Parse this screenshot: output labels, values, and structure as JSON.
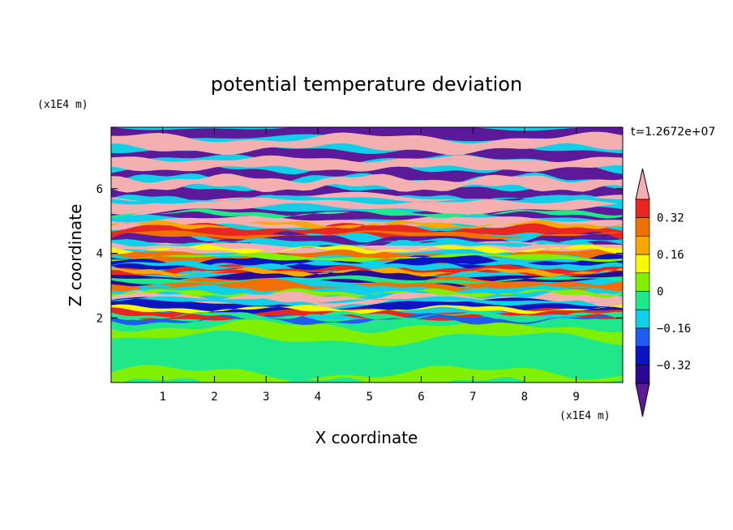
{
  "chart_data": {
    "type": "heatmap",
    "title": "potential temperature deviation",
    "xlabel": "X coordinate",
    "ylabel": "Z coordinate",
    "x_unit": "(x1E4 m)",
    "y_unit": "(x1E4 m)",
    "time_label": "t=1.2672e+07",
    "xlim": [
      0,
      9.9
    ],
    "ylim": [
      0,
      7.9
    ],
    "x_ticks": [
      1,
      2,
      3,
      4,
      5,
      6,
      7,
      8,
      9
    ],
    "y_ticks": [
      2,
      4,
      6
    ],
    "x_tick_labels": [
      "1",
      "2",
      "3",
      "4",
      "5",
      "6",
      "7",
      "8",
      "9"
    ],
    "y_tick_labels": [
      "2",
      "4",
      "6"
    ],
    "colorbar": {
      "levels": [
        -0.4,
        -0.32,
        -0.24,
        -0.16,
        -0.08,
        0,
        0.08,
        0.16,
        0.24,
        0.32,
        0.4
      ],
      "tick_values": [
        0.32,
        0.16,
        0,
        -0.16,
        -0.32
      ],
      "tick_labels": [
        "0.32",
        "0.16",
        "0",
        "−0.16",
        "−0.32"
      ],
      "colors": [
        "#5c1a9a",
        "#2a0a94",
        "#0a14c2",
        "#1e5cf0",
        "#10cfe6",
        "#20e88a",
        "#80f000",
        "#f8f800",
        "#f8a800",
        "#f07000",
        "#e82820",
        "#f4b0b0"
      ],
      "extend": "both"
    }
  }
}
